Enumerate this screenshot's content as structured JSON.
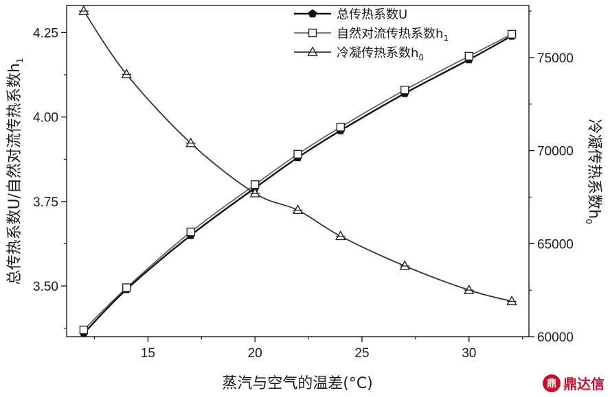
{
  "chart_data": {
    "type": "line",
    "xlabel": "蒸汽与空气的温差(°C)",
    "ylabel_left": {
      "main": "总传热系数U/自然对流传热系数h",
      "sub": "1"
    },
    "ylabel_right": {
      "main": "冷凝传热系数h",
      "sub": "0"
    },
    "xlim": [
      11.2,
      32.8
    ],
    "ylim_left": [
      3.35,
      4.33
    ],
    "ylim_right": [
      60000,
      77800
    ],
    "x_ticks": [
      15,
      20,
      25,
      30
    ],
    "y_left_ticks": [
      "3.50",
      "3.75",
      "4.00",
      "4.25"
    ],
    "y_right_ticks": [
      "60000",
      "65000",
      "70000",
      "75000"
    ],
    "x": [
      12,
      14,
      17,
      20,
      22,
      24,
      27,
      30,
      32
    ],
    "legend_position": "top-center",
    "series": [
      {
        "name": "总传热系数U",
        "axis": "left",
        "marker": "filled-pentagon",
        "values": [
          3.36,
          3.49,
          3.65,
          3.79,
          3.88,
          3.96,
          4.07,
          4.17,
          4.24
        ]
      },
      {
        "name": "自然对流传热系数h",
        "name_sub": "1",
        "axis": "left",
        "marker": "open-square",
        "values": [
          3.37,
          3.495,
          3.66,
          3.8,
          3.89,
          3.97,
          4.08,
          4.18,
          4.245
        ]
      },
      {
        "name": "冷凝传热系数h",
        "name_sub": "0",
        "axis": "right",
        "marker": "open-triangle",
        "values": [
          77500,
          74100,
          70400,
          67700,
          66800,
          65400,
          63800,
          62500,
          61900
        ]
      }
    ]
  },
  "watermark": {
    "logo": "鼎",
    "text": "鼎达信"
  }
}
